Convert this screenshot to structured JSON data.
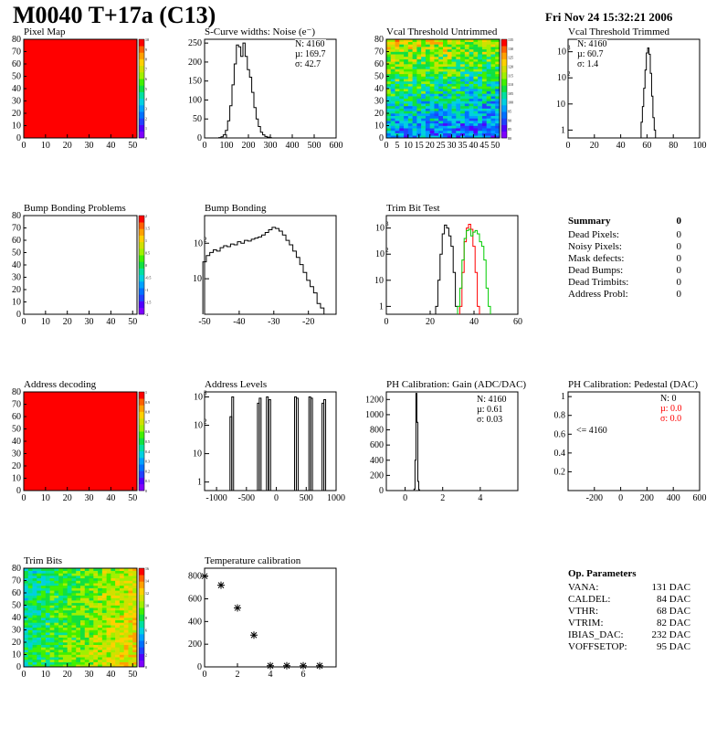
{
  "header": {
    "title": "M0040 T+17a (C13)",
    "date": "Fri Nov 24 15:32:21 2006"
  },
  "colors": {
    "red": "#ff0000",
    "green": "#00cc00",
    "black": "#000000"
  },
  "palette": [
    "#7f00ff",
    "#5000ff",
    "#2040ff",
    "#0070ff",
    "#00a0ff",
    "#00d0e0",
    "#00e0a0",
    "#10e040",
    "#40f000",
    "#a0f000",
    "#d0e000",
    "#ffd000",
    "#ffa000",
    "#ff6000",
    "#ff0000"
  ],
  "panels": {
    "pixel_map": {
      "title": "Pixel Map",
      "palette_ticks": [
        "10",
        "9",
        "8",
        "7",
        "6",
        "5",
        "4",
        "3",
        "2",
        "1",
        "0"
      ]
    },
    "scurve": {
      "title": "S-Curve widths: Noise (e⁻)",
      "stats": [
        "N: 4160",
        "µ: 169.7",
        "σ: 42.7"
      ]
    },
    "vcal_untrimmed": {
      "title": "Vcal Threshold Untrimmed",
      "palette_ticks": [
        "135",
        "130",
        "125",
        "120",
        "115",
        "110",
        "105",
        "100",
        "95",
        "90",
        "85",
        "80"
      ]
    },
    "vcal_trimmed": {
      "title": "Vcal Threshold Trimmed",
      "stats": [
        "N: 4160",
        "µ: 60.7",
        "σ:  1.4"
      ]
    },
    "bump_problems": {
      "title": "Bump Bonding Problems",
      "palette_ticks": [
        "2",
        "1.5",
        "1",
        "0.5",
        "0",
        "-0.5",
        "-1",
        "-1.5",
        "-2"
      ]
    },
    "bump_bonding": {
      "title": "Bump Bonding"
    },
    "trim_bit_test": {
      "title": "Trim Bit Test"
    },
    "summary": {
      "title": "Summary",
      "total": "0",
      "rows": [
        {
          "label": "Dead Pixels:",
          "value": "0"
        },
        {
          "label": "Noisy Pixels:",
          "value": "0"
        },
        {
          "label": "Mask defects:",
          "value": "0"
        },
        {
          "label": "Dead Bumps:",
          "value": "0"
        },
        {
          "label": "Dead Trimbits:",
          "value": "0"
        },
        {
          "label": "Address Probl:",
          "value": "0"
        }
      ]
    },
    "address_decoding": {
      "title": "Address decoding",
      "palette_ticks": [
        "1",
        "0.9",
        "0.8",
        "0.7",
        "0.6",
        "0.5",
        "0.4",
        "0.3",
        "0.2",
        "0.1",
        "0"
      ]
    },
    "address_levels": {
      "title": "Address Levels"
    },
    "ph_gain": {
      "title": "PH Calibration: Gain (ADC/DAC)",
      "stats": [
        "N: 4160",
        "µ: 0.61",
        "σ: 0.03"
      ]
    },
    "ph_pedestal": {
      "title": "PH Calibration: Pedestal (DAC)",
      "stats": [
        "N:    0",
        "µ:  0.0",
        "σ:  0.0"
      ],
      "annotation": "<= 4160"
    },
    "trim_bits": {
      "title": "Trim Bits",
      "palette_ticks": [
        "16",
        "14",
        "12",
        "10",
        "8",
        "6",
        "4",
        "2",
        "0"
      ]
    },
    "temperature": {
      "title": "Temperature calibration"
    },
    "op_params": {
      "title": "Op. Parameters",
      "rows": [
        {
          "label": "VANA:",
          "value": "131 DAC"
        },
        {
          "label": "CALDEL:",
          "value": "84 DAC"
        },
        {
          "label": "VTHR:",
          "value": "68 DAC"
        },
        {
          "label": "VTRIM:",
          "value": "82 DAC"
        },
        {
          "label": "IBIAS_DAC:",
          "value": "232 DAC"
        },
        {
          "label": "VOFFSETOP:",
          "value": "95 DAC"
        }
      ]
    }
  },
  "chart_data": [
    {
      "id": "pixel_map",
      "type": "heatmap",
      "title": "Pixel Map",
      "xlim": [
        0,
        52
      ],
      "ylim": [
        0,
        80
      ],
      "xticks": [
        0,
        10,
        20,
        30,
        40,
        50
      ],
      "yticks": [
        0,
        10,
        20,
        30,
        40,
        50,
        60,
        70,
        80
      ],
      "zlim": [
        0,
        10
      ],
      "uniform_value": 10
    },
    {
      "id": "scurve",
      "type": "bar",
      "title": "S-Curve widths: Noise (e⁻)",
      "xlim": [
        0,
        600
      ],
      "ylim": [
        0,
        260
      ],
      "xticks": [
        0,
        100,
        200,
        300,
        400,
        500,
        600
      ],
      "yticks": [
        0,
        50,
        100,
        150,
        200,
        250
      ],
      "x": [
        70,
        80,
        90,
        100,
        110,
        120,
        130,
        140,
        150,
        160,
        170,
        180,
        190,
        200,
        210,
        220,
        230,
        240,
        250,
        260,
        270,
        280,
        290,
        300
      ],
      "values": [
        1,
        3,
        8,
        20,
        45,
        85,
        140,
        195,
        245,
        240,
        215,
        250,
        215,
        180,
        160,
        120,
        80,
        50,
        30,
        15,
        8,
        4,
        2,
        1
      ]
    },
    {
      "id": "vcal_untrimmed",
      "type": "heatmap",
      "title": "Vcal Threshold Untrimmed",
      "xlim": [
        0,
        52
      ],
      "ylim": [
        0,
        80
      ],
      "xticks": [
        0,
        5,
        10,
        15,
        20,
        25,
        30,
        35,
        40,
        45,
        50
      ],
      "yticks": [
        0,
        10,
        20,
        30,
        40,
        50,
        60,
        70,
        80
      ],
      "zlim": [
        80,
        137
      ]
    },
    {
      "id": "vcal_trimmed",
      "type": "bar",
      "log_y": true,
      "title": "Vcal Threshold Trimmed",
      "xlim": [
        0,
        100
      ],
      "xticks": [
        0,
        20,
        40,
        60,
        80,
        100
      ],
      "yticks": [
        1,
        10,
        100,
        1000
      ],
      "x": [
        56,
        57,
        58,
        59,
        60,
        61,
        62,
        63,
        64,
        65,
        66
      ],
      "values": [
        2,
        8,
        40,
        200,
        900,
        1400,
        800,
        150,
        20,
        3,
        1
      ]
    },
    {
      "id": "bump_problems",
      "type": "heatmap",
      "title": "Bump Bonding Problems",
      "xlim": [
        0,
        52
      ],
      "ylim": [
        0,
        80
      ],
      "xticks": [
        0,
        10,
        20,
        30,
        40,
        50
      ],
      "yticks": [
        0,
        10,
        20,
        30,
        40,
        50,
        60,
        70,
        80
      ],
      "zlim": [
        -2,
        2
      ],
      "uniform_value": null
    },
    {
      "id": "bump_bonding",
      "type": "line",
      "log_y": true,
      "title": "Bump Bonding",
      "xlim": [
        -50,
        -12
      ],
      "xticks": [
        -50,
        -40,
        -30,
        -20
      ],
      "yticks": [
        10,
        100
      ],
      "x": [
        -50,
        -49,
        -48,
        -47,
        -46,
        -45,
        -44,
        -43,
        -42,
        -41,
        -40,
        -39,
        -38,
        -37,
        -36,
        -35,
        -34,
        -33,
        -32,
        -31,
        -30,
        -29,
        -28,
        -27,
        -26,
        -25,
        -24,
        -23,
        -22,
        -21,
        -20,
        -19,
        -18,
        -17,
        -16,
        -15,
        -14
      ],
      "values": [
        30,
        45,
        55,
        65,
        60,
        75,
        85,
        80,
        95,
        90,
        110,
        100,
        120,
        115,
        130,
        140,
        150,
        170,
        200,
        240,
        280,
        260,
        220,
        170,
        120,
        90,
        60,
        40,
        25,
        15,
        9,
        6,
        4,
        2,
        1.5,
        1,
        1
      ]
    },
    {
      "id": "trim_bit_test",
      "type": "line",
      "log_y": true,
      "title": "Trim Bit Test",
      "xlim": [
        0,
        60
      ],
      "xticks": [
        0,
        20,
        40,
        60
      ],
      "yticks": [
        1,
        10,
        100,
        1000
      ],
      "series": [
        {
          "color": "#000000",
          "x": [
            23,
            24,
            25,
            26,
            27,
            28,
            29,
            30,
            31,
            32
          ],
          "values": [
            1,
            10,
            100,
            600,
            1300,
            1000,
            500,
            200,
            20,
            1
          ]
        },
        {
          "color": "#ff0000",
          "x": [
            34,
            35,
            36,
            37,
            38,
            39,
            40,
            41,
            42
          ],
          "values": [
            1,
            20,
            300,
            1000,
            1400,
            900,
            200,
            20,
            1
          ]
        },
        {
          "color": "#00cc00",
          "x": [
            33,
            34,
            35,
            36,
            37,
            38,
            39,
            40,
            41,
            42,
            43,
            44,
            45,
            46,
            47
          ],
          "values": [
            1,
            5,
            60,
            400,
            800,
            900,
            500,
            700,
            800,
            600,
            300,
            200,
            60,
            5,
            1
          ]
        }
      ]
    },
    {
      "id": "address_decoding",
      "type": "heatmap",
      "title": "Address decoding",
      "xlim": [
        0,
        52
      ],
      "ylim": [
        0,
        80
      ],
      "xticks": [
        0,
        10,
        20,
        30,
        40,
        50
      ],
      "yticks": [
        0,
        10,
        20,
        30,
        40,
        50,
        60,
        70,
        80
      ],
      "zlim": [
        0,
        1
      ],
      "uniform_value": 1
    },
    {
      "id": "address_levels",
      "type": "bar",
      "log_y": true,
      "title": "Address Levels",
      "xlim": [
        -1200,
        1000
      ],
      "xticks": [
        -1000,
        -500,
        0,
        500,
        1000
      ],
      "yticks": [
        1,
        10,
        100,
        1000
      ],
      "x": [
        -760,
        -730,
        -300,
        -270,
        -150,
        -110,
        320,
        350,
        560,
        590,
        780,
        810
      ],
      "values": [
        200,
        1000,
        600,
        900,
        1000,
        800,
        1000,
        900,
        1000,
        900,
        600,
        800
      ]
    },
    {
      "id": "ph_gain",
      "type": "bar",
      "title": "PH Calibration: Gain (ADC/DAC)",
      "xlim": [
        -1,
        6
      ],
      "ylim": [
        0,
        1300
      ],
      "xticks": [
        0,
        2,
        4
      ],
      "yticks": [
        0,
        200,
        400,
        600,
        800,
        1000,
        1200
      ],
      "x": [
        0.5,
        0.55,
        0.6,
        0.65,
        0.7,
        0.75
      ],
      "values": [
        20,
        400,
        1280,
        900,
        120,
        10
      ]
    },
    {
      "id": "ph_pedestal",
      "type": "bar",
      "title": "PH Calibration: Pedestal (DAC)",
      "xlim": [
        -400,
        600
      ],
      "ylim": [
        0,
        1.05
      ],
      "xticks": [
        -200,
        0,
        200,
        400,
        600
      ],
      "yticks": [
        0.2,
        0.4,
        0.6,
        0.8,
        1
      ],
      "values": []
    },
    {
      "id": "trim_bits",
      "type": "heatmap",
      "title": "Trim Bits",
      "xlim": [
        0,
        52
      ],
      "ylim": [
        0,
        80
      ],
      "xticks": [
        0,
        10,
        20,
        30,
        40,
        50
      ],
      "yticks": [
        0,
        10,
        20,
        30,
        40,
        50,
        60,
        70,
        80
      ],
      "zlim": [
        0,
        16
      ]
    },
    {
      "id": "temperature",
      "type": "scatter",
      "title": "Temperature calibration",
      "xlim": [
        0,
        8
      ],
      "ylim": [
        0,
        870
      ],
      "xticks": [
        0,
        2,
        4,
        6
      ],
      "yticks": [
        0,
        200,
        400,
        600,
        800
      ],
      "x": [
        0,
        1,
        2,
        3,
        4,
        5,
        6,
        7
      ],
      "values": [
        800,
        720,
        520,
        280,
        10,
        10,
        10,
        10
      ]
    }
  ]
}
